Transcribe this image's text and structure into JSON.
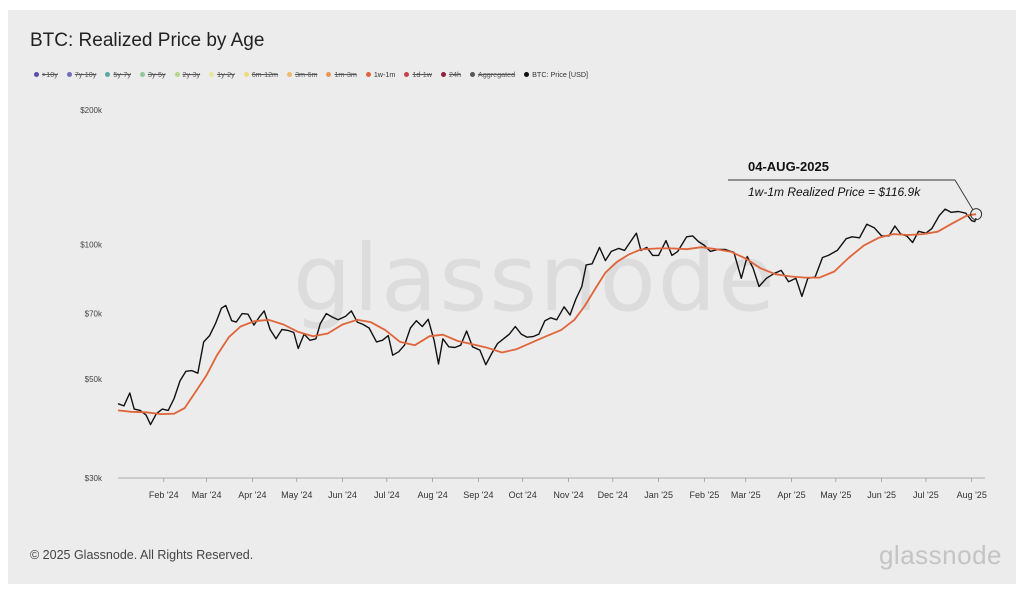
{
  "header": {
    "title": "BTC: Realized Price by Age"
  },
  "legend": [
    {
      "label": ">10y",
      "color": "#5b4da8",
      "active": false
    },
    {
      "label": "7y-10y",
      "color": "#6e6cc0",
      "active": false
    },
    {
      "label": "5y-7y",
      "color": "#5aa7a3",
      "active": false
    },
    {
      "label": "3y-5y",
      "color": "#8fc99a",
      "active": false
    },
    {
      "label": "2y-3y",
      "color": "#b5d68a",
      "active": false
    },
    {
      "label": "1y-2y",
      "color": "#e7e69a",
      "active": false
    },
    {
      "label": "6m-12m",
      "color": "#efd97a",
      "active": false
    },
    {
      "label": "3m-6m",
      "color": "#f0b96a",
      "active": false
    },
    {
      "label": "1m-3m",
      "color": "#ec9553",
      "active": false
    },
    {
      "label": "1w-1m",
      "color": "#e0653a",
      "active": true
    },
    {
      "label": "1d-1w",
      "color": "#c8424a",
      "active": false
    },
    {
      "label": "24h",
      "color": "#8f1f3a",
      "active": false
    },
    {
      "label": "Aggregated",
      "color": "#555555",
      "active": false
    },
    {
      "label": "BTC: Price [USD]",
      "color": "#111111",
      "active": true
    }
  ],
  "annotation": {
    "date": "04-AUG-2025",
    "text": "1w-1m Realized Price = $116.9k"
  },
  "footer": {
    "copyright": "© 2025 Glassnode. All Rights Reserved.",
    "brand": "glassnode"
  },
  "watermark": "glassnode",
  "colors": {
    "price": "#111111",
    "realized": "#e0653a",
    "background": "#ececec"
  },
  "chart_data": {
    "type": "line",
    "title": "BTC: Realized Price by Age",
    "yscale": "log",
    "ylim": [
      30000,
      200000
    ],
    "yticks": [
      {
        "value": 30000,
        "label": "$30k"
      },
      {
        "value": 50000,
        "label": "$50k"
      },
      {
        "value": 70000,
        "label": "$70k"
      },
      {
        "value": 100000,
        "label": "$100k"
      },
      {
        "value": 200000,
        "label": "$200k"
      }
    ],
    "xlim": [
      "2024-01-01",
      "2025-08-10"
    ],
    "xticks": [
      {
        "date": "2024-02-01",
        "label": "Feb '24"
      },
      {
        "date": "2024-03-01",
        "label": "Mar '24"
      },
      {
        "date": "2024-04-01",
        "label": "Apr '24"
      },
      {
        "date": "2024-05-01",
        "label": "May '24"
      },
      {
        "date": "2024-06-01",
        "label": "Jun '24"
      },
      {
        "date": "2024-07-01",
        "label": "Jul '24"
      },
      {
        "date": "2024-08-01",
        "label": "Aug '24"
      },
      {
        "date": "2024-09-01",
        "label": "Sep '24"
      },
      {
        "date": "2024-10-01",
        "label": "Oct '24"
      },
      {
        "date": "2024-11-01",
        "label": "Nov '24"
      },
      {
        "date": "2024-12-01",
        "label": "Dec '24"
      },
      {
        "date": "2025-01-01",
        "label": "Jan '25"
      },
      {
        "date": "2025-02-01",
        "label": "Feb '25"
      },
      {
        "date": "2025-03-01",
        "label": "Mar '25"
      },
      {
        "date": "2025-04-01",
        "label": "Apr '25"
      },
      {
        "date": "2025-05-01",
        "label": "May '25"
      },
      {
        "date": "2025-06-01",
        "label": "Jun '25"
      },
      {
        "date": "2025-07-01",
        "label": "Jul '25"
      },
      {
        "date": "2025-08-01",
        "label": "Aug '25"
      }
    ],
    "series": [
      {
        "name": "BTC: Price [USD]",
        "color": "#111111",
        "points": [
          [
            "2024-01-01",
            44000
          ],
          [
            "2024-01-05",
            43500
          ],
          [
            "2024-01-09",
            46500
          ],
          [
            "2024-01-12",
            42800
          ],
          [
            "2024-01-16",
            42500
          ],
          [
            "2024-01-20",
            41500
          ],
          [
            "2024-01-23",
            39500
          ],
          [
            "2024-01-27",
            41800
          ],
          [
            "2024-01-31",
            42800
          ],
          [
            "2024-02-04",
            42500
          ],
          [
            "2024-02-08",
            45200
          ],
          [
            "2024-02-12",
            49500
          ],
          [
            "2024-02-16",
            52000
          ],
          [
            "2024-02-20",
            52200
          ],
          [
            "2024-02-24",
            51500
          ],
          [
            "2024-02-28",
            60500
          ],
          [
            "2024-03-03",
            62500
          ],
          [
            "2024-03-07",
            66500
          ],
          [
            "2024-03-11",
            72000
          ],
          [
            "2024-03-14",
            73000
          ],
          [
            "2024-03-18",
            67500
          ],
          [
            "2024-03-21",
            67000
          ],
          [
            "2024-03-25",
            70000
          ],
          [
            "2024-03-29",
            69800
          ],
          [
            "2024-04-02",
            66000
          ],
          [
            "2024-04-06",
            69000
          ],
          [
            "2024-04-09",
            71000
          ],
          [
            "2024-04-13",
            64500
          ],
          [
            "2024-04-17",
            61500
          ],
          [
            "2024-04-21",
            64500
          ],
          [
            "2024-04-25",
            64200
          ],
          [
            "2024-04-29",
            63500
          ],
          [
            "2024-05-02",
            58500
          ],
          [
            "2024-05-06",
            63000
          ],
          [
            "2024-05-10",
            61000
          ],
          [
            "2024-05-14",
            61500
          ],
          [
            "2024-05-17",
            66500
          ],
          [
            "2024-05-21",
            70000
          ],
          [
            "2024-05-25",
            68800
          ],
          [
            "2024-05-29",
            67800
          ],
          [
            "2024-06-03",
            69000
          ],
          [
            "2024-06-07",
            71000
          ],
          [
            "2024-06-11",
            67000
          ],
          [
            "2024-06-15",
            66200
          ],
          [
            "2024-06-19",
            65000
          ],
          [
            "2024-06-24",
            60500
          ],
          [
            "2024-06-28",
            61000
          ],
          [
            "2024-07-02",
            62500
          ],
          [
            "2024-07-05",
            56500
          ],
          [
            "2024-07-09",
            57500
          ],
          [
            "2024-07-13",
            59500
          ],
          [
            "2024-07-17",
            65000
          ],
          [
            "2024-07-21",
            67500
          ],
          [
            "2024-07-25",
            65500
          ],
          [
            "2024-07-29",
            68000
          ],
          [
            "2024-08-02",
            61000
          ],
          [
            "2024-08-05",
            54000
          ],
          [
            "2024-08-08",
            61500
          ],
          [
            "2024-08-12",
            59000
          ],
          [
            "2024-08-16",
            58800
          ],
          [
            "2024-08-20",
            59500
          ],
          [
            "2024-08-24",
            64000
          ],
          [
            "2024-08-28",
            59000
          ],
          [
            "2024-09-02",
            58000
          ],
          [
            "2024-09-06",
            53800
          ],
          [
            "2024-09-10",
            57000
          ],
          [
            "2024-09-14",
            60000
          ],
          [
            "2024-09-18",
            61500
          ],
          [
            "2024-09-22",
            63000
          ],
          [
            "2024-09-26",
            65500
          ],
          [
            "2024-09-30",
            63000
          ],
          [
            "2024-10-04",
            62000
          ],
          [
            "2024-10-08",
            62200
          ],
          [
            "2024-10-12",
            63000
          ],
          [
            "2024-10-16",
            67500
          ],
          [
            "2024-10-20",
            68500
          ],
          [
            "2024-10-24",
            67800
          ],
          [
            "2024-10-29",
            72500
          ],
          [
            "2024-11-02",
            69500
          ],
          [
            "2024-11-06",
            75500
          ],
          [
            "2024-11-10",
            80500
          ],
          [
            "2024-11-13",
            90000
          ],
          [
            "2024-11-17",
            90500
          ],
          [
            "2024-11-22",
            98500
          ],
          [
            "2024-11-26",
            92000
          ],
          [
            "2024-11-30",
            96500
          ],
          [
            "2024-12-05",
            98000
          ],
          [
            "2024-12-09",
            97000
          ],
          [
            "2024-12-13",
            101500
          ],
          [
            "2024-12-17",
            106000
          ],
          [
            "2024-12-20",
            97000
          ],
          [
            "2024-12-24",
            98500
          ],
          [
            "2024-12-28",
            94500
          ],
          [
            "2025-01-01",
            94500
          ],
          [
            "2025-01-06",
            102000
          ],
          [
            "2025-01-10",
            94500
          ],
          [
            "2025-01-14",
            96500
          ],
          [
            "2025-01-20",
            104000
          ],
          [
            "2025-01-24",
            104500
          ],
          [
            "2025-01-28",
            101500
          ],
          [
            "2025-02-01",
            99500
          ],
          [
            "2025-02-05",
            96500
          ],
          [
            "2025-02-10",
            97500
          ],
          [
            "2025-02-15",
            97500
          ],
          [
            "2025-02-21",
            96000
          ],
          [
            "2025-02-26",
            84000
          ],
          [
            "2025-03-02",
            94000
          ],
          [
            "2025-03-06",
            88500
          ],
          [
            "2025-03-10",
            80500
          ],
          [
            "2025-03-15",
            84000
          ],
          [
            "2025-03-20",
            86000
          ],
          [
            "2025-03-25",
            87500
          ],
          [
            "2025-03-30",
            82500
          ],
          [
            "2025-04-04",
            84000
          ],
          [
            "2025-04-08",
            76500
          ],
          [
            "2025-04-12",
            84000
          ],
          [
            "2025-04-17",
            84500
          ],
          [
            "2025-04-22",
            93500
          ],
          [
            "2025-04-26",
            94500
          ],
          [
            "2025-05-02",
            97000
          ],
          [
            "2025-05-08",
            103000
          ],
          [
            "2025-05-12",
            104000
          ],
          [
            "2025-05-17",
            103500
          ],
          [
            "2025-05-22",
            111000
          ],
          [
            "2025-05-27",
            109000
          ],
          [
            "2025-06-01",
            104500
          ],
          [
            "2025-06-06",
            104500
          ],
          [
            "2025-06-10",
            110000
          ],
          [
            "2025-06-14",
            105500
          ],
          [
            "2025-06-18",
            104500
          ],
          [
            "2025-06-22",
            101000
          ],
          [
            "2025-06-26",
            107000
          ],
          [
            "2025-07-01",
            106000
          ],
          [
            "2025-07-05",
            108500
          ],
          [
            "2025-07-10",
            116000
          ],
          [
            "2025-07-14",
            120000
          ],
          [
            "2025-07-18",
            118000
          ],
          [
            "2025-07-23",
            118500
          ],
          [
            "2025-07-28",
            117500
          ],
          [
            "2025-08-01",
            113000
          ],
          [
            "2025-08-03",
            112500
          ],
          [
            "2025-08-04",
            114500
          ]
        ]
      },
      {
        "name": "1w-1m",
        "color": "#e0653a",
        "points": [
          [
            "2024-01-01",
            42500
          ],
          [
            "2024-01-10",
            42200
          ],
          [
            "2024-01-20",
            42100
          ],
          [
            "2024-01-30",
            41700
          ],
          [
            "2024-02-08",
            41800
          ],
          [
            "2024-02-15",
            43000
          ],
          [
            "2024-02-22",
            46500
          ],
          [
            "2024-03-01",
            51000
          ],
          [
            "2024-03-08",
            56500
          ],
          [
            "2024-03-16",
            62000
          ],
          [
            "2024-03-24",
            65500
          ],
          [
            "2024-04-02",
            67300
          ],
          [
            "2024-04-12",
            67800
          ],
          [
            "2024-04-22",
            66200
          ],
          [
            "2024-05-02",
            63700
          ],
          [
            "2024-05-12",
            62300
          ],
          [
            "2024-05-22",
            63200
          ],
          [
            "2024-06-01",
            66200
          ],
          [
            "2024-06-11",
            67800
          ],
          [
            "2024-06-20",
            67000
          ],
          [
            "2024-06-30",
            64300
          ],
          [
            "2024-07-10",
            60500
          ],
          [
            "2024-07-20",
            59500
          ],
          [
            "2024-07-30",
            62300
          ],
          [
            "2024-08-08",
            62800
          ],
          [
            "2024-08-18",
            60800
          ],
          [
            "2024-08-28",
            59800
          ],
          [
            "2024-09-07",
            58700
          ],
          [
            "2024-09-17",
            57300
          ],
          [
            "2024-09-27",
            58300
          ],
          [
            "2024-10-07",
            60300
          ],
          [
            "2024-10-17",
            62300
          ],
          [
            "2024-10-27",
            64300
          ],
          [
            "2024-11-05",
            67800
          ],
          [
            "2024-11-12",
            72800
          ],
          [
            "2024-11-19",
            79500
          ],
          [
            "2024-11-26",
            86500
          ],
          [
            "2024-12-04",
            91500
          ],
          [
            "2024-12-12",
            95000
          ],
          [
            "2024-12-20",
            97500
          ],
          [
            "2025-01-01",
            98000
          ],
          [
            "2025-01-10",
            98000
          ],
          [
            "2025-01-20",
            97600
          ],
          [
            "2025-01-30",
            98600
          ],
          [
            "2025-02-09",
            97600
          ],
          [
            "2025-02-19",
            96300
          ],
          [
            "2025-03-01",
            93000
          ],
          [
            "2025-03-11",
            88500
          ],
          [
            "2025-03-21",
            85800
          ],
          [
            "2025-03-31",
            84800
          ],
          [
            "2025-04-10",
            84300
          ],
          [
            "2025-04-20",
            84300
          ],
          [
            "2025-04-30",
            87000
          ],
          [
            "2025-05-10",
            93500
          ],
          [
            "2025-05-20",
            99500
          ],
          [
            "2025-05-30",
            103500
          ],
          [
            "2025-06-09",
            105500
          ],
          [
            "2025-06-19",
            105000
          ],
          [
            "2025-06-29",
            105500
          ],
          [
            "2025-07-09",
            106800
          ],
          [
            "2025-07-19",
            111500
          ],
          [
            "2025-07-29",
            116200
          ],
          [
            "2025-08-04",
            116900
          ]
        ]
      }
    ],
    "marker": {
      "date": "2025-08-04",
      "value": 116900
    }
  }
}
